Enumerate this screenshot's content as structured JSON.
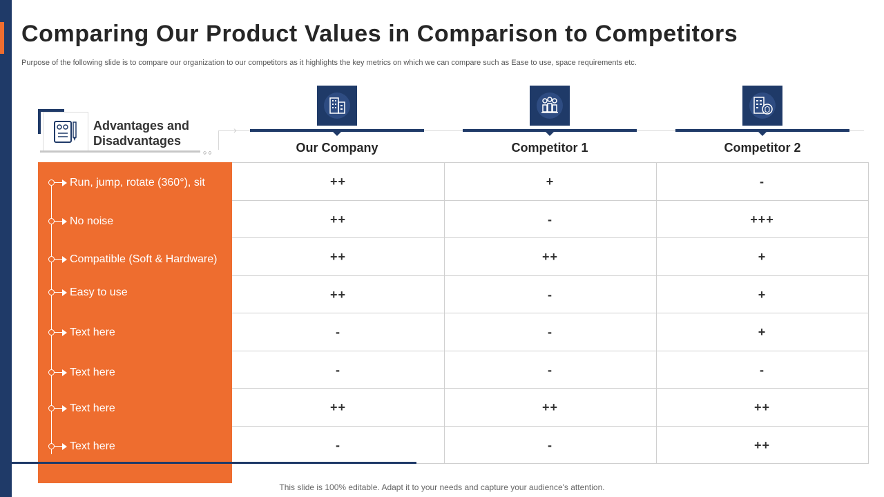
{
  "title": "Comparing Our Product Values in Comparison to Competitors",
  "subtitle": "Purpose of the following slide is to compare our organization to our competitors as it highlights the key metrics on which we can compare such as Ease to use, space requirements etc.",
  "header_card": {
    "label_line1": "Advantages and",
    "label_line2": "Disadvantages",
    "icon": "checklist-pencil-icon"
  },
  "columns": [
    {
      "label": "Our Company",
      "icon": "office-building-icon"
    },
    {
      "label": "Competitor 1",
      "icon": "team-people-icon"
    },
    {
      "label": "Competitor 2",
      "icon": "building-box-icon"
    }
  ],
  "rows": [
    {
      "label": "Run, jump, rotate (360°), sit",
      "values": [
        "++",
        "+",
        "-"
      ]
    },
    {
      "label": "No noise",
      "values": [
        "++",
        "-",
        "+++"
      ]
    },
    {
      "label": "Compatible (Soft & Hardware)",
      "values": [
        "++",
        "++",
        "+"
      ]
    },
    {
      "label": "Easy to use",
      "values": [
        "++",
        "-",
        "+"
      ]
    },
    {
      "label": "Text here",
      "values": [
        "-",
        "-",
        "+"
      ]
    },
    {
      "label": "Text here",
      "values": [
        "-",
        "-",
        "-"
      ]
    },
    {
      "label": "Text here",
      "values": [
        "++",
        "++",
        "++"
      ]
    },
    {
      "label": "Text here",
      "values": [
        "-",
        "-",
        "++"
      ]
    }
  ],
  "footer": "This slide is 100% editable. Adapt it to your needs and capture your audience's attention.",
  "colors": {
    "navy": "#1f3a68",
    "orange": "#ee6d2f"
  }
}
